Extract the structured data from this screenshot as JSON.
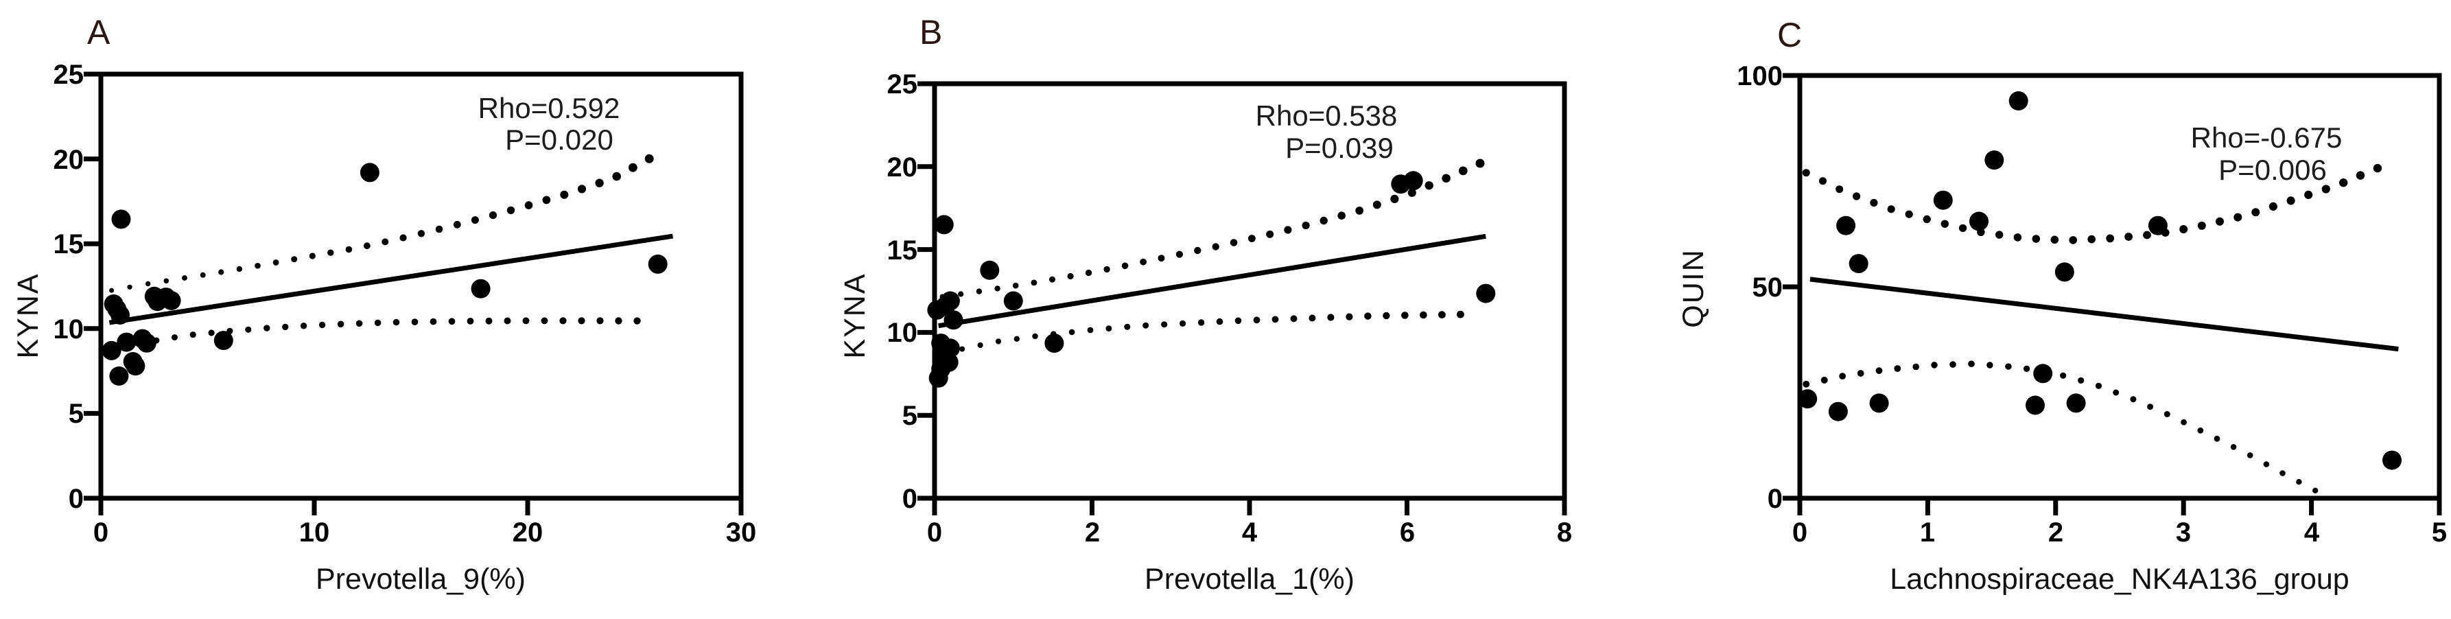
{
  "colors": {
    "ink": "#000000",
    "annotation": "#1c1c1c",
    "panel_label": "#2a1713",
    "background": "#ffffff"
  },
  "chart_data": [
    {
      "type": "scatter",
      "panel_label": "A",
      "xlabel": "Prevotella_9(%)",
      "ylabel": "KYNA",
      "stats": {
        "rho": 0.592,
        "p": 0.02,
        "rho_label": "Rho=0.592",
        "p_label": "P=0.020"
      },
      "xlim": [
        0,
        30
      ],
      "ylim": [
        0,
        25
      ],
      "x_ticks": [
        0,
        10,
        20,
        30
      ],
      "y_ticks": [
        0,
        5,
        10,
        15,
        20,
        25
      ],
      "x_tick_labels": [
        "0",
        "10",
        "20",
        "30"
      ],
      "y_tick_labels": [
        "0",
        "5",
        "10",
        "15",
        "20",
        "25"
      ],
      "legend": "none",
      "grid": false,
      "points": [
        [
          0.95,
          16.45
        ],
        [
          12.6,
          19.2
        ],
        [
          17.8,
          12.35
        ],
        [
          26.1,
          13.8
        ],
        [
          0.6,
          11.45
        ],
        [
          0.75,
          11.15
        ],
        [
          0.9,
          10.8
        ],
        [
          2.5,
          11.9
        ],
        [
          2.65,
          11.6
        ],
        [
          3.05,
          11.85
        ],
        [
          3.3,
          11.65
        ],
        [
          0.5,
          8.7
        ],
        [
          1.2,
          9.2
        ],
        [
          1.95,
          9.4
        ],
        [
          2.15,
          9.15
        ],
        [
          1.5,
          8.05
        ],
        [
          1.62,
          7.8
        ],
        [
          0.85,
          7.2
        ],
        [
          5.75,
          9.3
        ]
      ],
      "regression_line": [
        [
          0.4,
          10.35
        ],
        [
          26.8,
          15.45
        ]
      ],
      "band_upper": [
        [
          0.5,
          12.25
        ],
        [
          2,
          12.6
        ],
        [
          4,
          13.0
        ],
        [
          6,
          13.4
        ],
        [
          8,
          13.85
        ],
        [
          10,
          14.3
        ],
        [
          12,
          14.75
        ],
        [
          14,
          15.3
        ],
        [
          16,
          15.9
        ],
        [
          18,
          16.55
        ],
        [
          20,
          17.25
        ],
        [
          22,
          18.0
        ],
        [
          24,
          18.85
        ],
        [
          25.9,
          20.15
        ]
      ],
      "band_lower": [
        [
          2.6,
          9.3
        ],
        [
          4,
          9.6
        ],
        [
          6,
          9.85
        ],
        [
          8,
          10.05
        ],
        [
          10,
          10.2
        ],
        [
          12,
          10.3
        ],
        [
          14,
          10.38
        ],
        [
          16,
          10.42
        ],
        [
          18,
          10.45
        ],
        [
          20,
          10.46
        ],
        [
          22,
          10.46
        ],
        [
          24,
          10.46
        ],
        [
          25.9,
          10.45
        ]
      ]
    },
    {
      "type": "scatter",
      "panel_label": "B",
      "xlabel": "Prevotella_1(%)",
      "ylabel": "KYNA",
      "stats": {
        "rho": 0.538,
        "p": 0.039,
        "rho_label": "Rho=0.538",
        "p_label": "P=0.039"
      },
      "xlim": [
        0,
        8
      ],
      "ylim": [
        0,
        25
      ],
      "x_ticks": [
        0,
        2,
        4,
        6,
        8
      ],
      "y_ticks": [
        0,
        5,
        10,
        15,
        20,
        25
      ],
      "x_tick_labels": [
        "0",
        "2",
        "4",
        "6",
        "8"
      ],
      "y_tick_labels": [
        "0",
        "5",
        "10",
        "15",
        "20",
        "25"
      ],
      "legend": "none",
      "grid": false,
      "points": [
        [
          0.12,
          16.5
        ],
        [
          0.7,
          13.75
        ],
        [
          1.0,
          11.9
        ],
        [
          0.2,
          11.9
        ],
        [
          0.03,
          11.35
        ],
        [
          0.14,
          11.6
        ],
        [
          0.24,
          10.75
        ],
        [
          0.08,
          9.35
        ],
        [
          0.2,
          9.05
        ],
        [
          0.1,
          8.6
        ],
        [
          0.18,
          8.2
        ],
        [
          0.08,
          7.8
        ],
        [
          0.05,
          7.25
        ],
        [
          1.52,
          9.35
        ],
        [
          5.92,
          18.95
        ],
        [
          6.08,
          19.15
        ],
        [
          7.0,
          12.35
        ]
      ],
      "regression_line": [
        [
          0.05,
          10.4
        ],
        [
          7.0,
          15.8
        ]
      ],
      "band_upper": [
        [
          0.1,
          12.15
        ],
        [
          0.6,
          12.5
        ],
        [
          1.2,
          12.95
        ],
        [
          1.8,
          13.45
        ],
        [
          2.4,
          14.0
        ],
        [
          3.0,
          14.6
        ],
        [
          3.6,
          15.2
        ],
        [
          4.2,
          15.85
        ],
        [
          4.8,
          16.55
        ],
        [
          5.4,
          17.35
        ],
        [
          6.0,
          18.3
        ],
        [
          6.5,
          19.3
        ],
        [
          7.0,
          20.35
        ]
      ],
      "band_lower": [
        [
          0.35,
          9.0
        ],
        [
          0.8,
          9.45
        ],
        [
          1.4,
          9.85
        ],
        [
          2.0,
          10.15
        ],
        [
          2.6,
          10.4
        ],
        [
          3.2,
          10.55
        ],
        [
          3.8,
          10.7
        ],
        [
          4.4,
          10.8
        ],
        [
          5.0,
          10.9
        ],
        [
          5.6,
          11.0
        ],
        [
          6.2,
          11.05
        ],
        [
          6.9,
          11.1
        ]
      ]
    },
    {
      "type": "scatter",
      "panel_label": "C",
      "xlabel": "Lachnospiraceae_NK4A136_group",
      "ylabel": "QUIN",
      "stats": {
        "rho": -0.675,
        "p": 0.006,
        "rho_label": "Rho=-0.675",
        "p_label": "P=0.006"
      },
      "xlim": [
        0,
        5
      ],
      "ylim": [
        0,
        100
      ],
      "x_ticks": [
        0,
        1,
        2,
        3,
        4,
        5
      ],
      "y_ticks": [
        0,
        50,
        100
      ],
      "x_tick_labels": [
        "0",
        "1",
        "2",
        "3",
        "4",
        "5"
      ],
      "y_tick_labels": [
        "0",
        "50",
        "100"
      ],
      "legend": "none",
      "grid": false,
      "points": [
        [
          0.06,
          23.5
        ],
        [
          0.3,
          20.5
        ],
        [
          0.62,
          22.5
        ],
        [
          0.36,
          64.5
        ],
        [
          0.46,
          55.5
        ],
        [
          1.12,
          70.5
        ],
        [
          1.4,
          65.5
        ],
        [
          1.52,
          80
        ],
        [
          1.71,
          94
        ],
        [
          1.84,
          22
        ],
        [
          1.9,
          29.5
        ],
        [
          2.07,
          53.5
        ],
        [
          2.16,
          22.5
        ],
        [
          2.8,
          64.5
        ],
        [
          4.63,
          9
        ]
      ],
      "regression_line": [
        [
          0.08,
          51.8
        ],
        [
          4.68,
          35.3
        ]
      ],
      "band_upper": [
        [
          0.05,
          77
        ],
        [
          0.35,
          72.5
        ],
        [
          0.7,
          68.5
        ],
        [
          1.05,
          65.5
        ],
        [
          1.4,
          63
        ],
        [
          1.75,
          61.5
        ],
        [
          2.1,
          61
        ],
        [
          2.45,
          61.5
        ],
        [
          2.8,
          62.5
        ],
        [
          3.15,
          64.5
        ],
        [
          3.5,
          67
        ],
        [
          3.85,
          70.5
        ],
        [
          4.2,
          74
        ],
        [
          4.55,
          78.5
        ]
      ],
      "band_lower": [
        [
          0.05,
          27
        ],
        [
          0.35,
          29
        ],
        [
          0.7,
          30.5
        ],
        [
          1.05,
          31.5
        ],
        [
          1.35,
          31.8
        ],
        [
          1.7,
          31
        ],
        [
          2.0,
          29.5
        ],
        [
          2.3,
          27
        ],
        [
          2.6,
          23.5
        ],
        [
          2.9,
          19.5
        ],
        [
          3.2,
          15
        ],
        [
          3.5,
          10.5
        ],
        [
          3.8,
          5.5
        ],
        [
          4.05,
          1.5
        ]
      ]
    }
  ]
}
